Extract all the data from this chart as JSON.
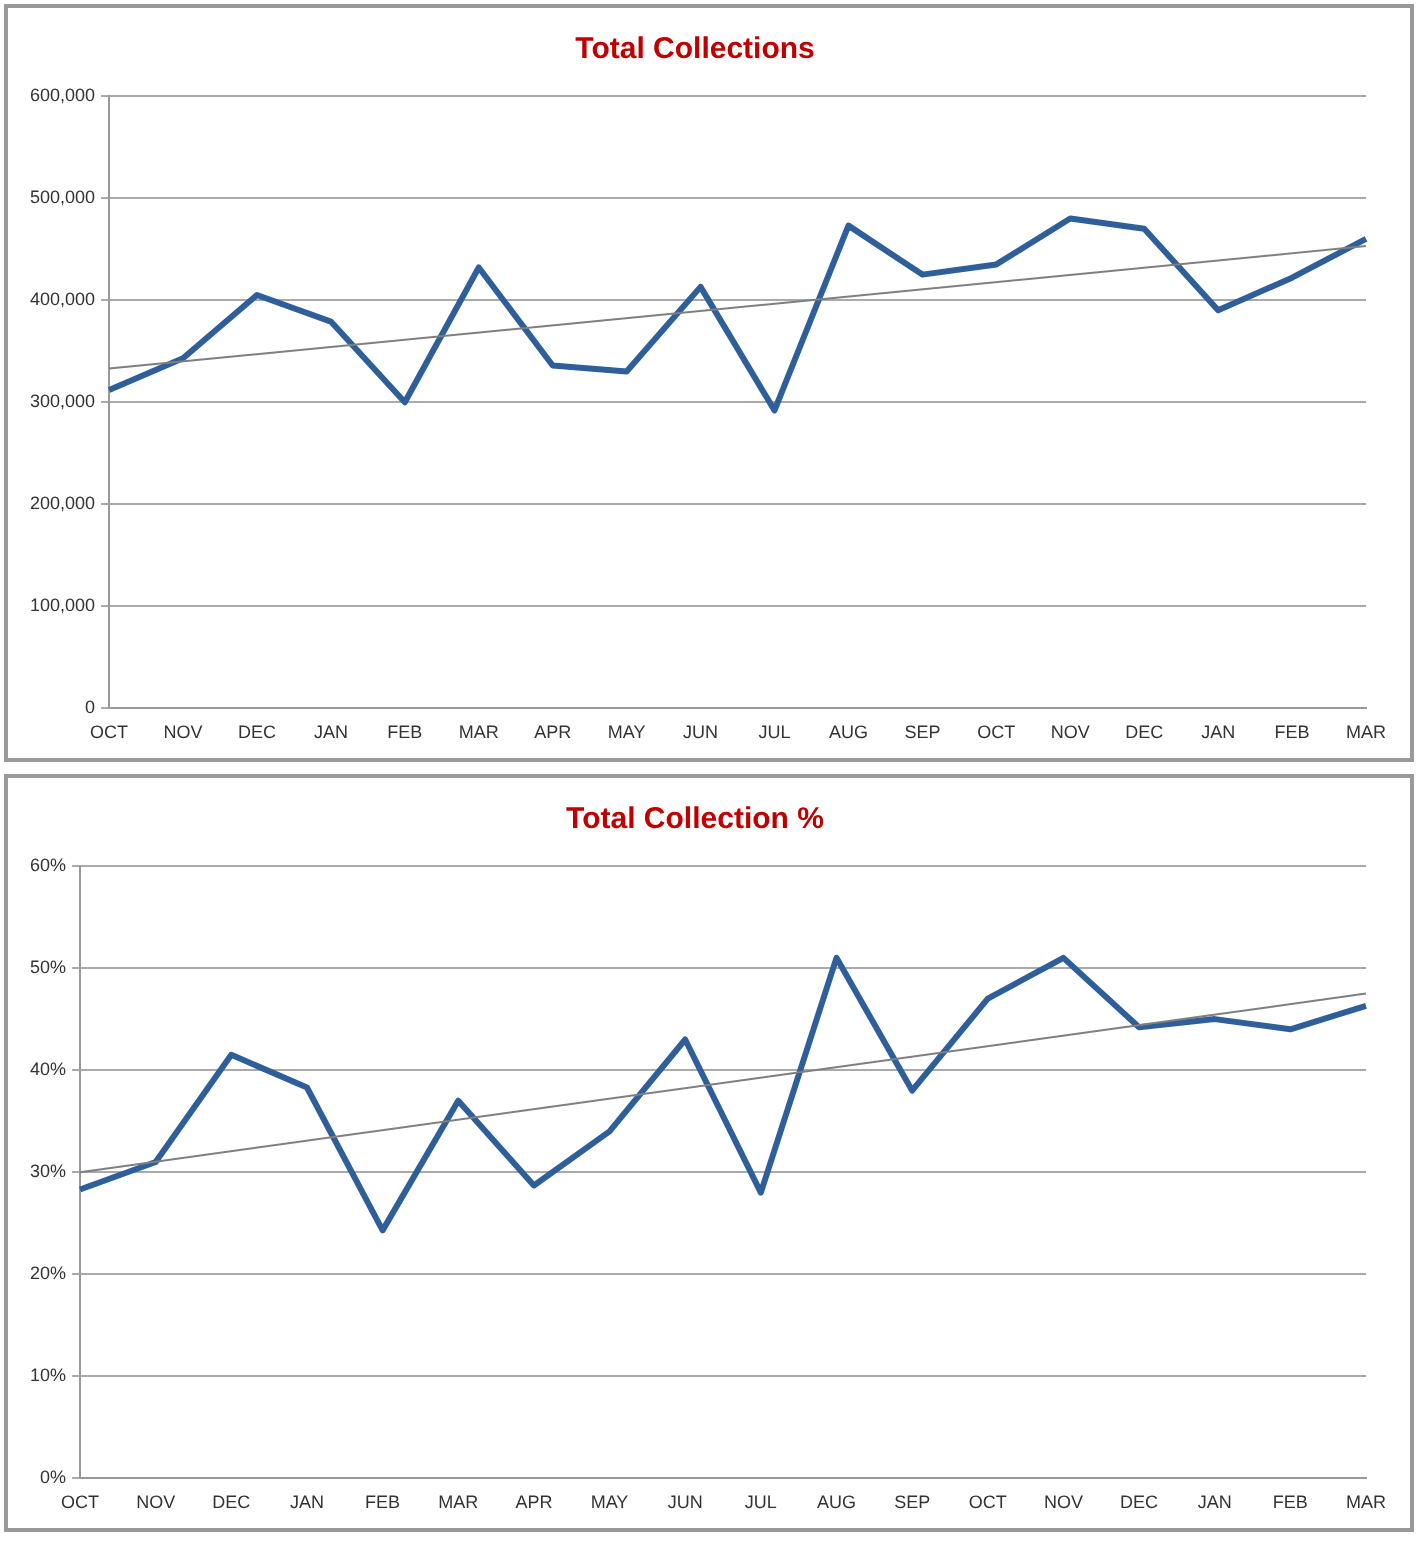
{
  "chart_data": [
    {
      "type": "line",
      "title": "Total Collections",
      "categories": [
        "OCT",
        "NOV",
        "DEC",
        "JAN",
        "FEB",
        "MAR",
        "APR",
        "MAY",
        "JUN",
        "JUL",
        "AUG",
        "SEP",
        "OCT",
        "NOV",
        "DEC",
        "JAN",
        "FEB",
        "MAR"
      ],
      "series": [
        {
          "color": "#2e5f9a",
          "values": [
            312000,
            343000,
            405000,
            379000,
            300000,
            432000,
            336000,
            330000,
            413000,
            292000,
            473000,
            425000,
            435000,
            480000,
            470000,
            390000,
            422000,
            460000
          ]
        },
        {
          "color": "#7f7f7f",
          "values": [
            333000,
            null,
            null,
            null,
            null,
            null,
            null,
            null,
            null,
            null,
            null,
            null,
            null,
            null,
            null,
            null,
            null,
            453000
          ]
        }
      ],
      "ylim": [
        0,
        600000
      ],
      "yticks": [
        {
          "value": 0,
          "label": "0"
        },
        {
          "value": 100000,
          "label": "100,000"
        },
        {
          "value": 200000,
          "label": "200,000"
        },
        {
          "value": 300000,
          "label": "300,000"
        },
        {
          "value": 400000,
          "label": "400,000"
        },
        {
          "value": 500000,
          "label": "500,000"
        },
        {
          "value": 600000,
          "label": "600,000"
        }
      ],
      "grid": "y",
      "legend": false,
      "marker": "none",
      "line_style": "solid"
    },
    {
      "type": "line",
      "title": "Total Collection %",
      "categories": [
        "OCT",
        "NOV",
        "DEC",
        "JAN",
        "FEB",
        "MAR",
        "APR",
        "MAY",
        "JUN",
        "JUL",
        "AUG",
        "SEP",
        "OCT",
        "NOV",
        "DEC",
        "JAN",
        "FEB",
        "MAR"
      ],
      "series": [
        {
          "color": "#2e5f9a",
          "values": [
            28.3,
            31,
            41.5,
            38.3,
            24.3,
            37,
            28.7,
            34,
            43,
            28,
            51,
            38,
            47,
            51,
            44.2,
            45,
            44,
            46.3
          ]
        },
        {
          "color": "#7f7f7f",
          "values": [
            30,
            null,
            null,
            null,
            null,
            null,
            null,
            null,
            null,
            null,
            null,
            null,
            null,
            null,
            null,
            null,
            null,
            47.5
          ]
        }
      ],
      "ylim": [
        0,
        60
      ],
      "yticks": [
        {
          "value": 0,
          "label": "0%"
        },
        {
          "value": 10,
          "label": "10%"
        },
        {
          "value": 20,
          "label": "20%"
        },
        {
          "value": 30,
          "label": "30%"
        },
        {
          "value": 40,
          "label": "40%"
        },
        {
          "value": 50,
          "label": "50%"
        },
        {
          "value": 60,
          "label": "60%"
        }
      ],
      "grid": "y",
      "legend": false,
      "marker": "none",
      "line_style": "solid"
    }
  ]
}
